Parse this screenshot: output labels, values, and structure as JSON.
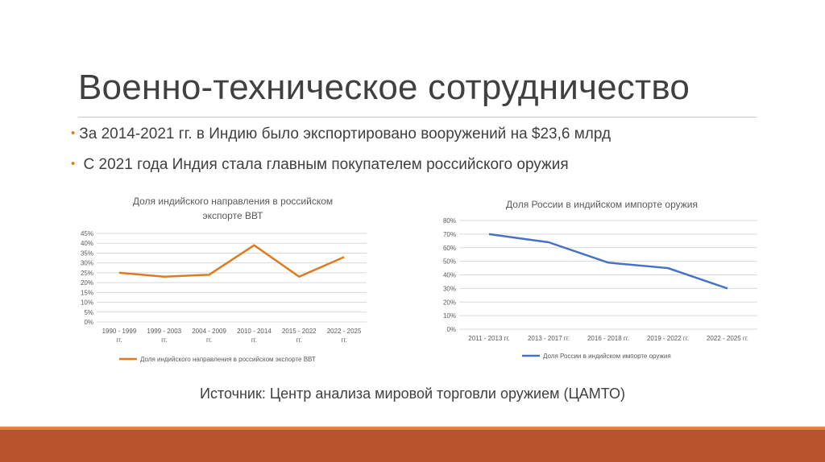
{
  "slide": {
    "title": "Военно-техническое сотрудничество",
    "bullets": [
      "За 2014-2021 гг. в Индию было экспортировано вооружений на $23,6 млрд",
      " С 2021 года Индия стала главным покупателем российского оружия"
    ],
    "source": "Источник: Центр анализа мировой торговли оружием (ЦАМТО)"
  },
  "colors": {
    "accent_orange": "#e07a1f",
    "series_orange": "#e07a1f",
    "series_blue": "#4472c4",
    "footer": "#b8532d",
    "footer_thin": "#e8833a"
  },
  "chart_data": [
    {
      "type": "line",
      "title_lines": [
        "Доля индийского направления в российском",
        "экспорте ВВТ"
      ],
      "categories": [
        [
          "1990 - 1999",
          "гг."
        ],
        [
          "1999 - 2003",
          "гг."
        ],
        [
          "2004 - 2009",
          "гг."
        ],
        [
          "2010 - 2014",
          "гг."
        ],
        [
          "2015 - 2022",
          "гг."
        ],
        [
          "2022  - 2025",
          "гг."
        ]
      ],
      "series": [
        {
          "name": "Доля индийского направления в российском экспорте ВВТ",
          "values": [
            25,
            23,
            24,
            39,
            23,
            33
          ]
        }
      ],
      "y_ticks": [
        "0%",
        "5%",
        "10%",
        "15%",
        "20%",
        "25%",
        "30%",
        "35%",
        "40%",
        "45%"
      ],
      "ylim": [
        0,
        45
      ],
      "grid": true,
      "legend": "bottom"
    },
    {
      "type": "line",
      "title_lines": [
        "Доля России в индийском импорте оружия"
      ],
      "categories": [
        [
          "2011 - 2013 гг."
        ],
        [
          "2013 - 2017 гг."
        ],
        [
          "2016 - 2018 гг."
        ],
        [
          "2019 - 2022 гг."
        ],
        [
          "2022 - 2025 гг."
        ]
      ],
      "series": [
        {
          "name": "Доля России в индийском импорте оружия",
          "values": [
            70,
            64,
            49,
            45,
            30
          ]
        }
      ],
      "y_ticks": [
        "0%",
        "10%",
        "20%",
        "30%",
        "40%",
        "50%",
        "60%",
        "70%",
        "80%"
      ],
      "ylim": [
        0,
        80
      ],
      "grid": true,
      "legend": "bottom"
    }
  ]
}
